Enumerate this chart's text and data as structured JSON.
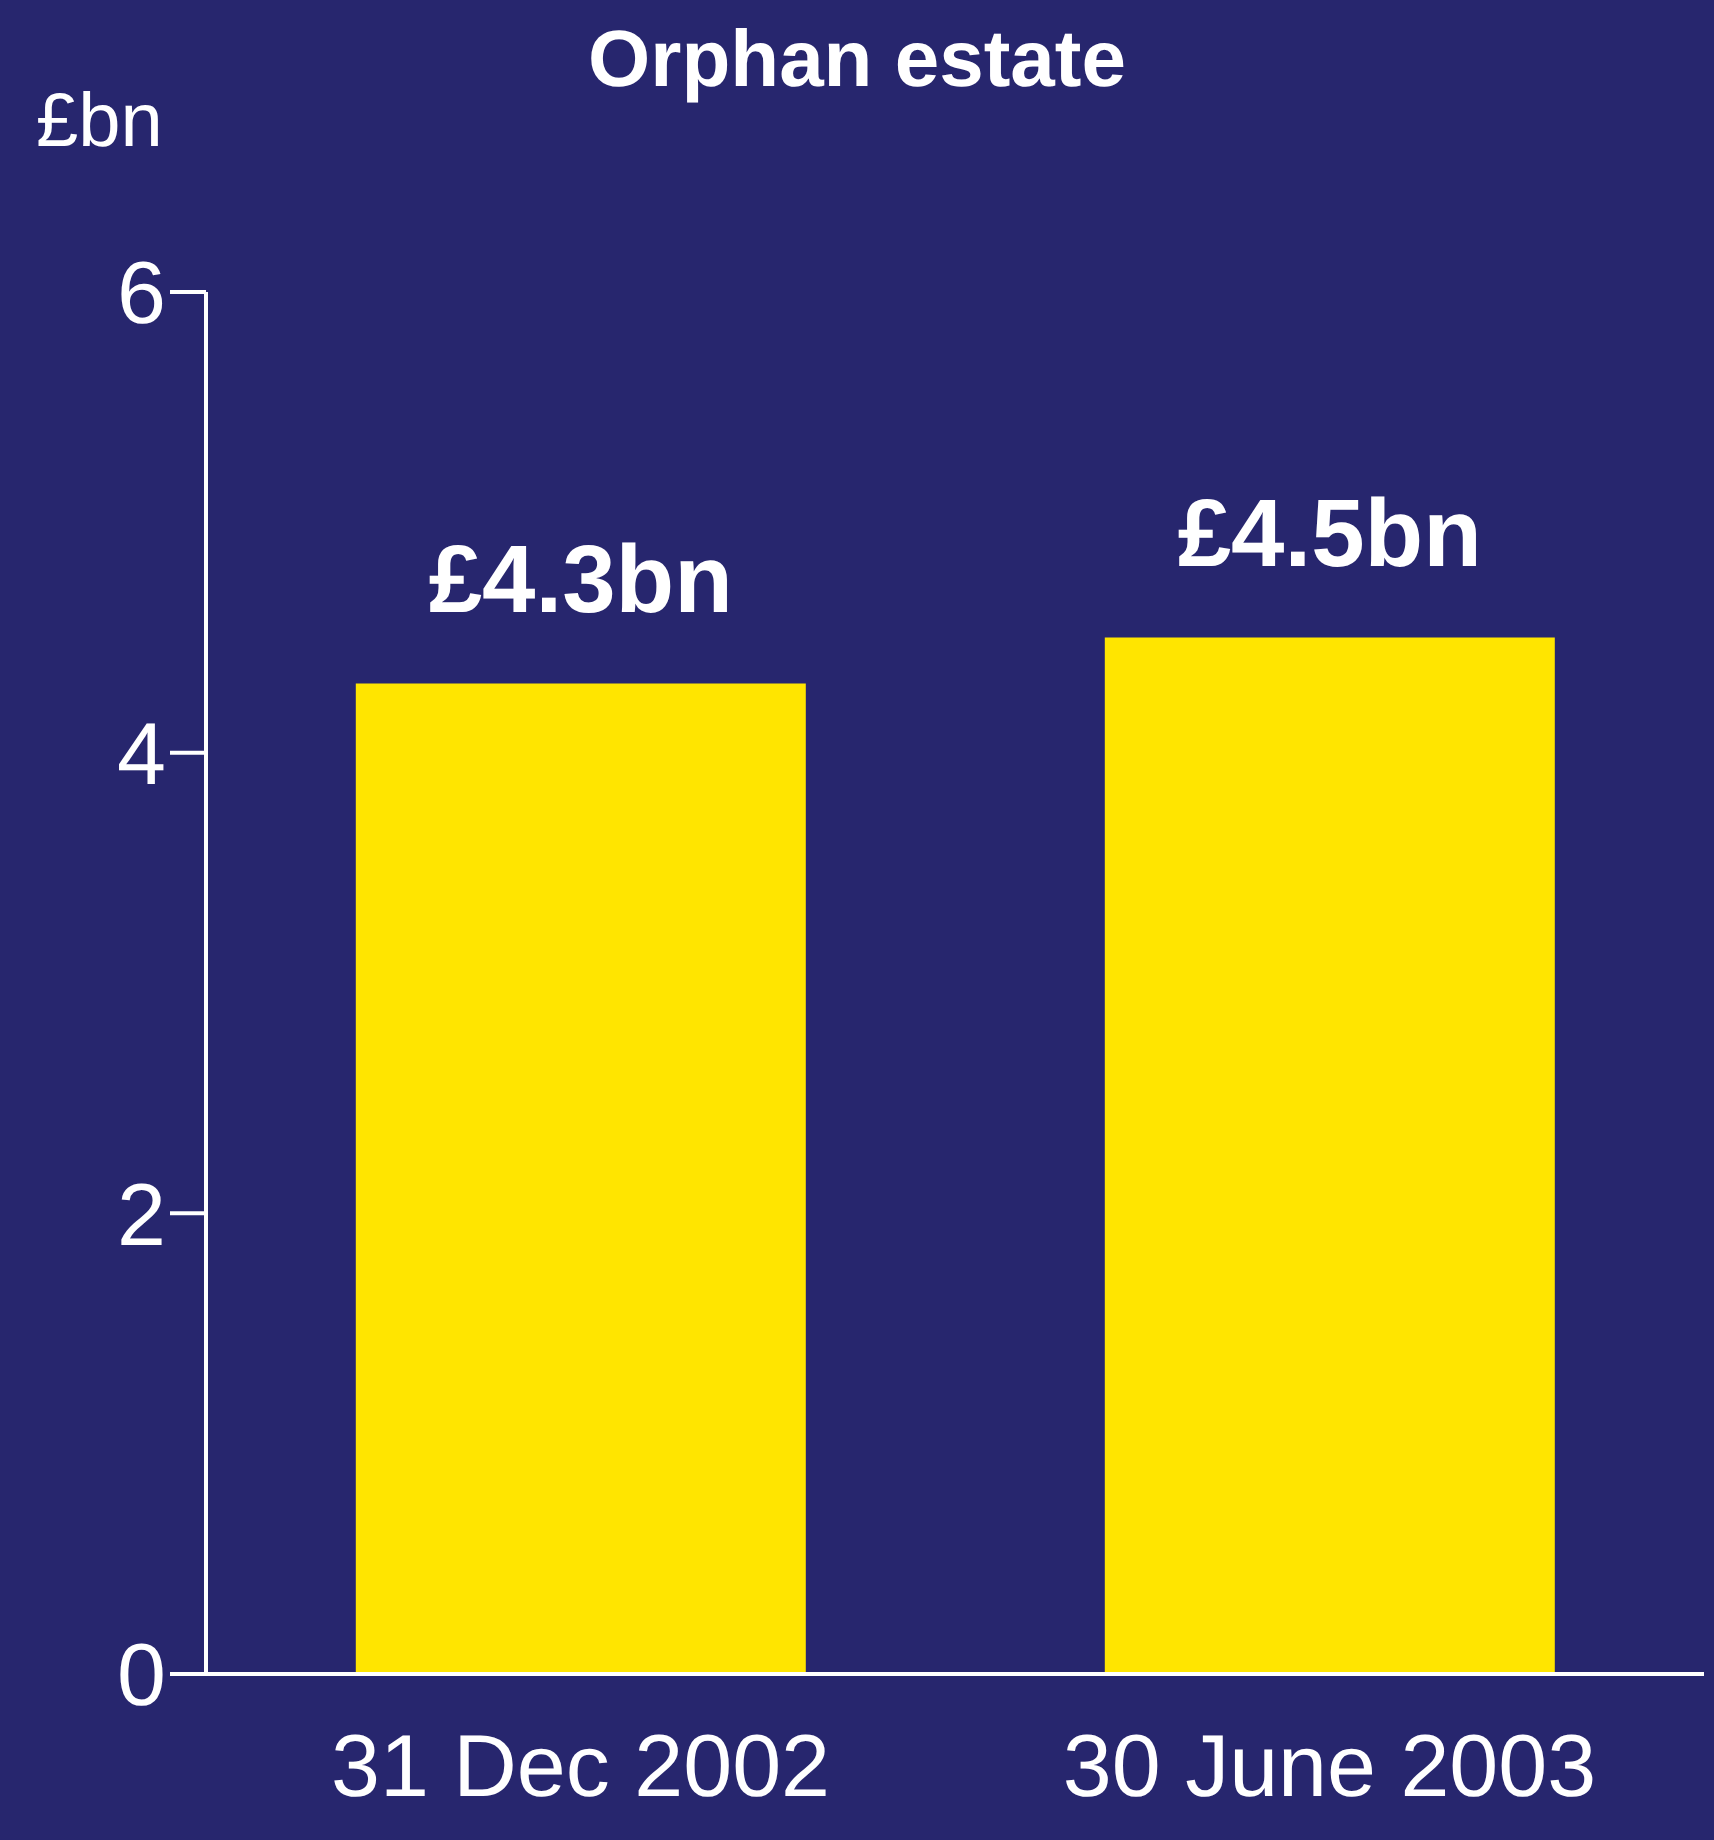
{
  "chart_data": {
    "type": "bar",
    "title": "Orphan estate",
    "ylabel": "£bn",
    "categories": [
      "31 Dec 2002",
      "30 June 2003"
    ],
    "values": [
      4.3,
      4.5
    ],
    "color": "#ffe500",
    "value_labels": [
      "£4.3bn",
      "£4.5bn"
    ],
    "ylim": [
      0,
      6
    ],
    "yticks": [
      0,
      2,
      4,
      6
    ],
    "grid": false,
    "legend": false
  }
}
